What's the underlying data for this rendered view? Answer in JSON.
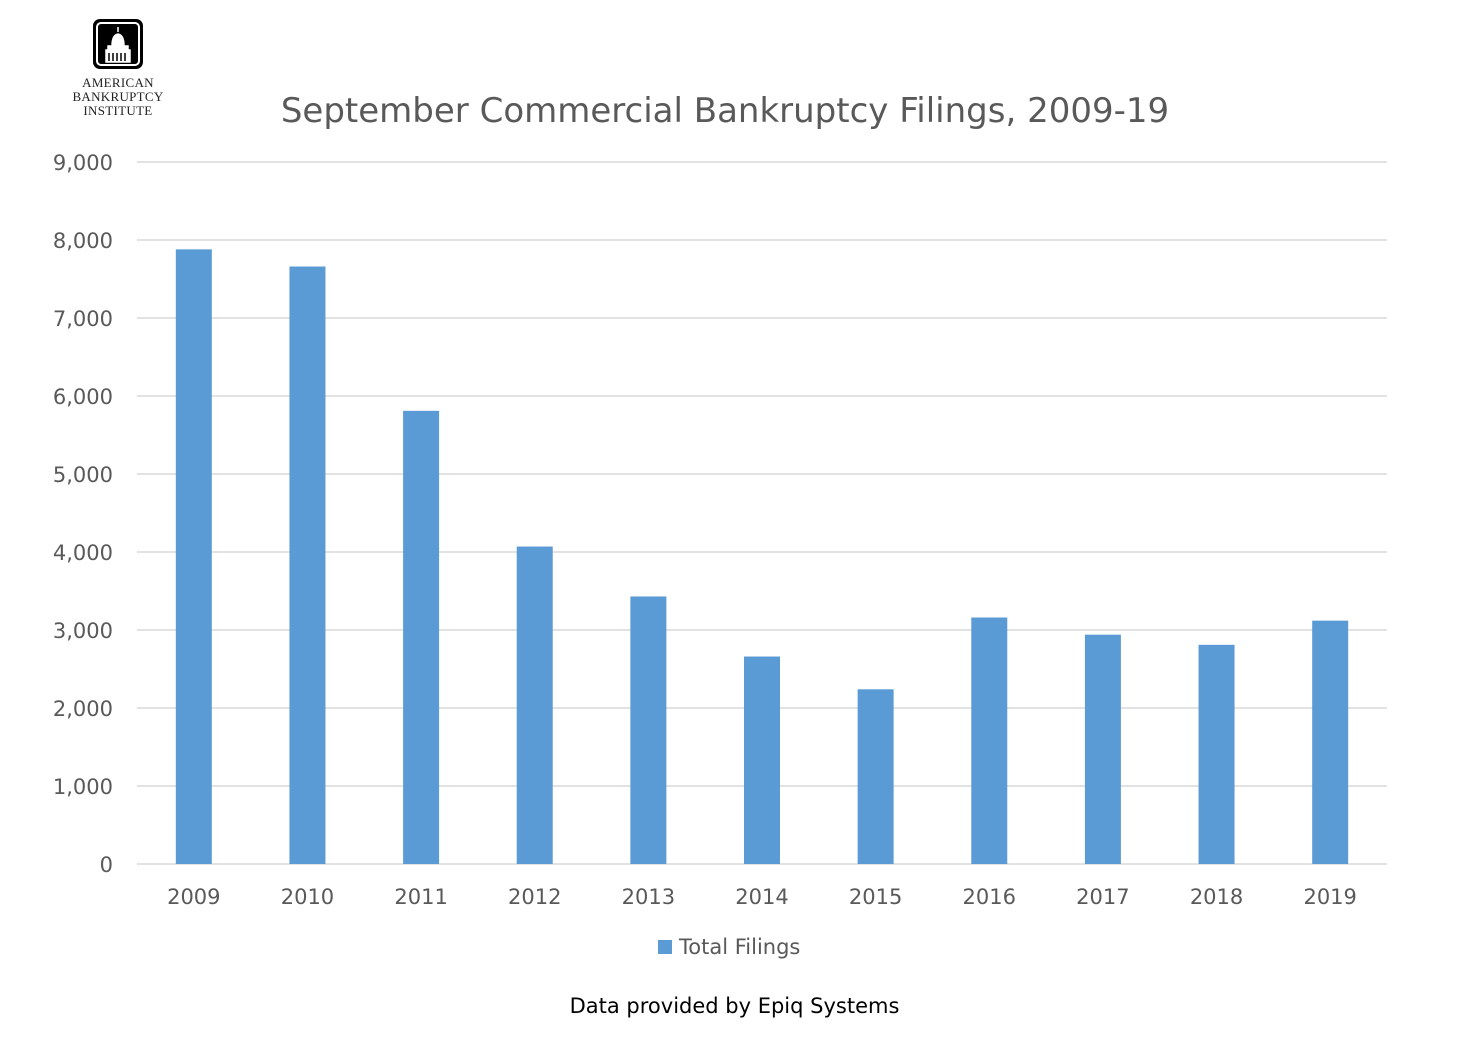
{
  "logo": {
    "lines": [
      "American",
      "Bankruptcy",
      "Institute"
    ]
  },
  "chart_data": {
    "type": "bar",
    "title": "September Commercial Bankruptcy Filings, 2009-19",
    "categories": [
      "2009",
      "2010",
      "2011",
      "2012",
      "2013",
      "2014",
      "2015",
      "2016",
      "2017",
      "2018",
      "2019"
    ],
    "series": [
      {
        "name": "Total Filings",
        "color": "#5b9bd5",
        "values": [
          7880,
          7660,
          5810,
          4070,
          3430,
          2660,
          2240,
          3160,
          2940,
          2810,
          3120
        ]
      }
    ],
    "ylim": [
      0,
      9000
    ],
    "yticks": [
      0,
      1000,
      2000,
      3000,
      4000,
      5000,
      6000,
      7000,
      8000,
      9000
    ],
    "ytick_labels": [
      "0",
      "1,000",
      "2,000",
      "3,000",
      "4,000",
      "5,000",
      "6,000",
      "7,000",
      "8,000",
      "9,000"
    ],
    "grid": true,
    "legend_position": "bottom"
  },
  "footer": {
    "text": "Data provided by Epiq Systems"
  }
}
